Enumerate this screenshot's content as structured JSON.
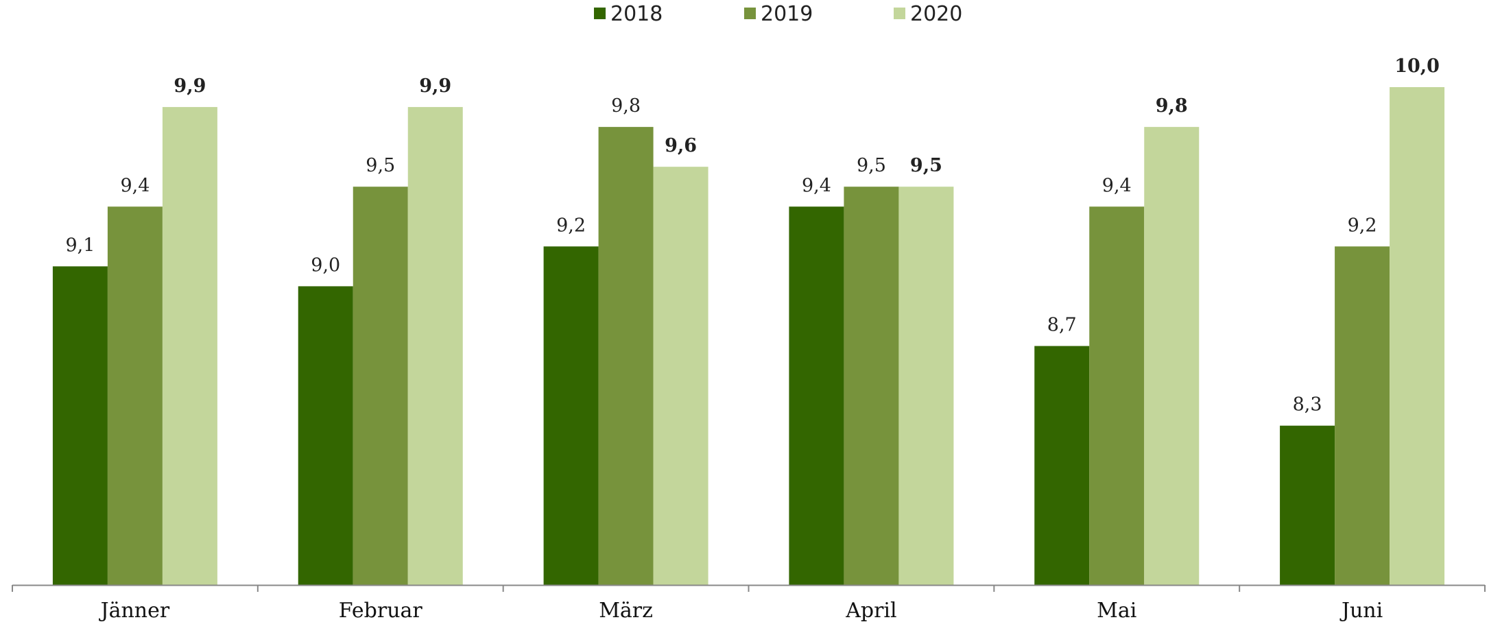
{
  "chart_data": {
    "type": "bar",
    "categories": [
      "Jänner",
      "Februar",
      "März",
      "April",
      "Mai",
      "Juni"
    ],
    "series": [
      {
        "name": "2018",
        "color": "#336600",
        "values": [
          9.1,
          9.0,
          9.2,
          9.4,
          8.7,
          8.3
        ],
        "labels": [
          "9,1",
          "9,0",
          "9,2",
          "9,4",
          "8,7",
          "8,3"
        ],
        "bold_labels": false
      },
      {
        "name": "2019",
        "color": "#77933c",
        "values": [
          9.4,
          9.5,
          9.8,
          9.5,
          9.4,
          9.2
        ],
        "labels": [
          "9,4",
          "9,5",
          "9,8",
          "9,5",
          "9,4",
          "9,2"
        ],
        "bold_labels": false
      },
      {
        "name": "2020",
        "color": "#c3d69b",
        "values": [
          9.9,
          9.9,
          9.6,
          9.5,
          9.8,
          10.0
        ],
        "labels": [
          "9,9",
          "9,9",
          "9,6",
          "9,5",
          "9,8",
          "10,0"
        ],
        "bold_labels": true
      }
    ],
    "ylim": [
      7.5,
      10.1
    ],
    "grid": false,
    "legend_position": "top-center",
    "title": "",
    "xlabel": "",
    "ylabel": ""
  }
}
